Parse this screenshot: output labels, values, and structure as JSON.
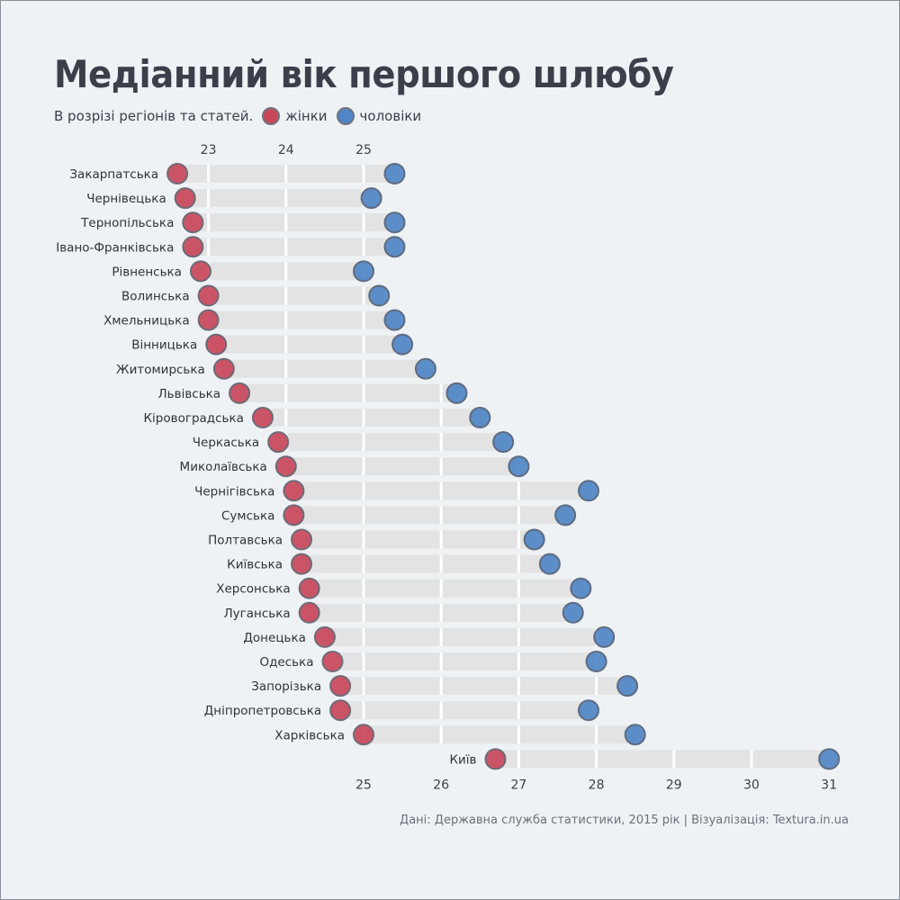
{
  "title": "Медіанний вік першого шлюбу",
  "subtitle": "В розрізі регіонів та статей.",
  "source": "Дані: Державна служба статистики, 2015 рік | Візуалізація: Textura.in.ua",
  "colors": {
    "women": "#c8485a",
    "men": "#4f86c6",
    "bar": "#e3e3e3",
    "grid": "#ffffff",
    "background": "#eef2f5"
  },
  "chart_data": {
    "type": "dumbbell",
    "title": "Медіанний вік першого шлюбу",
    "subtitle": "В розрізі регіонів та статей.",
    "series": [
      {
        "name": "жінки",
        "key": "women"
      },
      {
        "name": "чоловіки",
        "key": "men"
      }
    ],
    "x_ticks_top": [
      23,
      24,
      25
    ],
    "x_ticks_bottom": [
      25,
      26,
      27,
      28,
      29,
      30,
      31
    ],
    "xlim": [
      22.5,
      31
    ],
    "legend": "top-left",
    "grid": true,
    "rows": [
      {
        "region": "Закарпатська",
        "women": 22.6,
        "men": 25.4
      },
      {
        "region": "Чернівецька",
        "women": 22.7,
        "men": 25.1
      },
      {
        "region": "Тернопільська",
        "women": 22.8,
        "men": 25.4
      },
      {
        "region": "Івано-Франківська",
        "women": 22.8,
        "men": 25.4
      },
      {
        "region": "Рівненська",
        "women": 22.9,
        "men": 25.0
      },
      {
        "region": "Волинська",
        "women": 23.0,
        "men": 25.2
      },
      {
        "region": "Хмельницька",
        "women": 23.0,
        "men": 25.4
      },
      {
        "region": "Вінницька",
        "women": 23.1,
        "men": 25.5
      },
      {
        "region": "Житомирська",
        "women": 23.2,
        "men": 25.8
      },
      {
        "region": "Львівська",
        "women": 23.4,
        "men": 26.2
      },
      {
        "region": "Кіровоградська",
        "women": 23.7,
        "men": 26.5
      },
      {
        "region": "Черкаська",
        "women": 23.9,
        "men": 26.8
      },
      {
        "region": "Миколаївська",
        "women": 24.0,
        "men": 27.0
      },
      {
        "region": "Чернігівська",
        "women": 24.1,
        "men": 27.9
      },
      {
        "region": "Сумська",
        "women": 24.1,
        "men": 27.6
      },
      {
        "region": "Полтавська",
        "women": 24.2,
        "men": 27.2
      },
      {
        "region": "Київська",
        "women": 24.2,
        "men": 27.4
      },
      {
        "region": "Херсонська",
        "women": 24.3,
        "men": 27.8
      },
      {
        "region": "Луганська",
        "women": 24.3,
        "men": 27.7
      },
      {
        "region": "Донецька",
        "women": 24.5,
        "men": 28.1
      },
      {
        "region": "Одеська",
        "women": 24.6,
        "men": 28.0
      },
      {
        "region": "Запорізька",
        "women": 24.7,
        "men": 28.4
      },
      {
        "region": "Дніпропетровська",
        "women": 24.7,
        "men": 27.9
      },
      {
        "region": "Харківська",
        "women": 25.0,
        "men": 28.5
      },
      {
        "region": "Київ",
        "women": 26.7,
        "men": 31.0
      }
    ]
  }
}
